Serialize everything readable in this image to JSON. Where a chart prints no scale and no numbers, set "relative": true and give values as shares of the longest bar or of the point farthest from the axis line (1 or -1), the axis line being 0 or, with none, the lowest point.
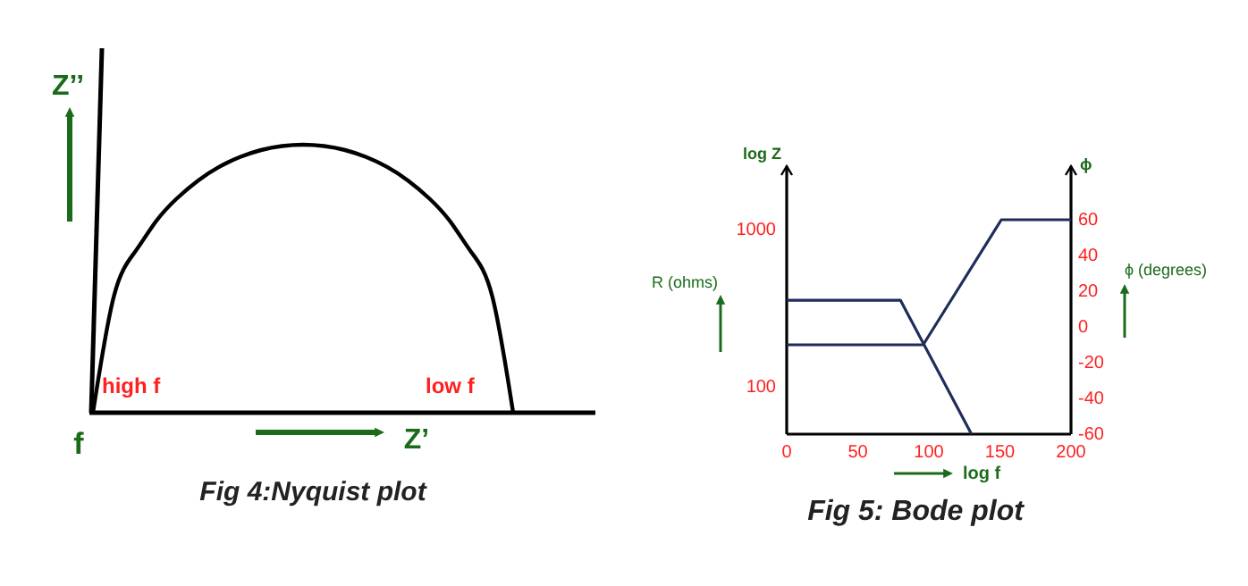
{
  "chart_data": [
    {
      "type": "line",
      "relative": true,
      "title": "Fig 4:Nyquist plot",
      "xlabel": "Z’",
      "ylabel": "Z’’",
      "categories": [
        null,
        null,
        null,
        null,
        null,
        null,
        null,
        null,
        null,
        null,
        null,
        null,
        null,
        null,
        null,
        null,
        null,
        null,
        null,
        null,
        null
      ],
      "series": [
        {
          "color": "#000000",
          "values": [
            0,
            0.436,
            0.6,
            0.714,
            0.8,
            0.866,
            0.917,
            0.954,
            0.98,
            0.995,
            1,
            0.995,
            0.98,
            0.954,
            0.917,
            0.866,
            0.8,
            0.714,
            0.6,
            0.436,
            0
          ]
        }
      ],
      "annotations": [
        "high f",
        "low f",
        "f"
      ]
    },
    {
      "type": "line",
      "title": "Fig 5: Bode plot",
      "xlabel": "log f",
      "ylabel": "R (ohms)",
      "y2label": "ϕ (degrees)",
      "log": "y",
      "xlim": [
        0,
        200
      ],
      "xticks": [
        0,
        50,
        100,
        150,
        200
      ],
      "ylim": [
        50,
        2500
      ],
      "yticks": [
        100,
        1000
      ],
      "y2lim": [
        -60,
        90
      ],
      "y2ticks": [
        -60,
        -40,
        -20,
        0,
        20,
        40,
        60
      ],
      "series": [
        {
          "color": "#1f2d5a",
          "x": [
            0,
            80,
            130
          ],
          "values": [
            353,
            353,
            50
          ]
        },
        {
          "color": "#1f2d5a",
          "axis": "y2",
          "x": [
            0,
            96,
            151,
            200
          ],
          "values": [
            -10,
            -10,
            60,
            60
          ]
        }
      ],
      "annotations": [
        "log Z",
        "ϕ"
      ]
    }
  ]
}
